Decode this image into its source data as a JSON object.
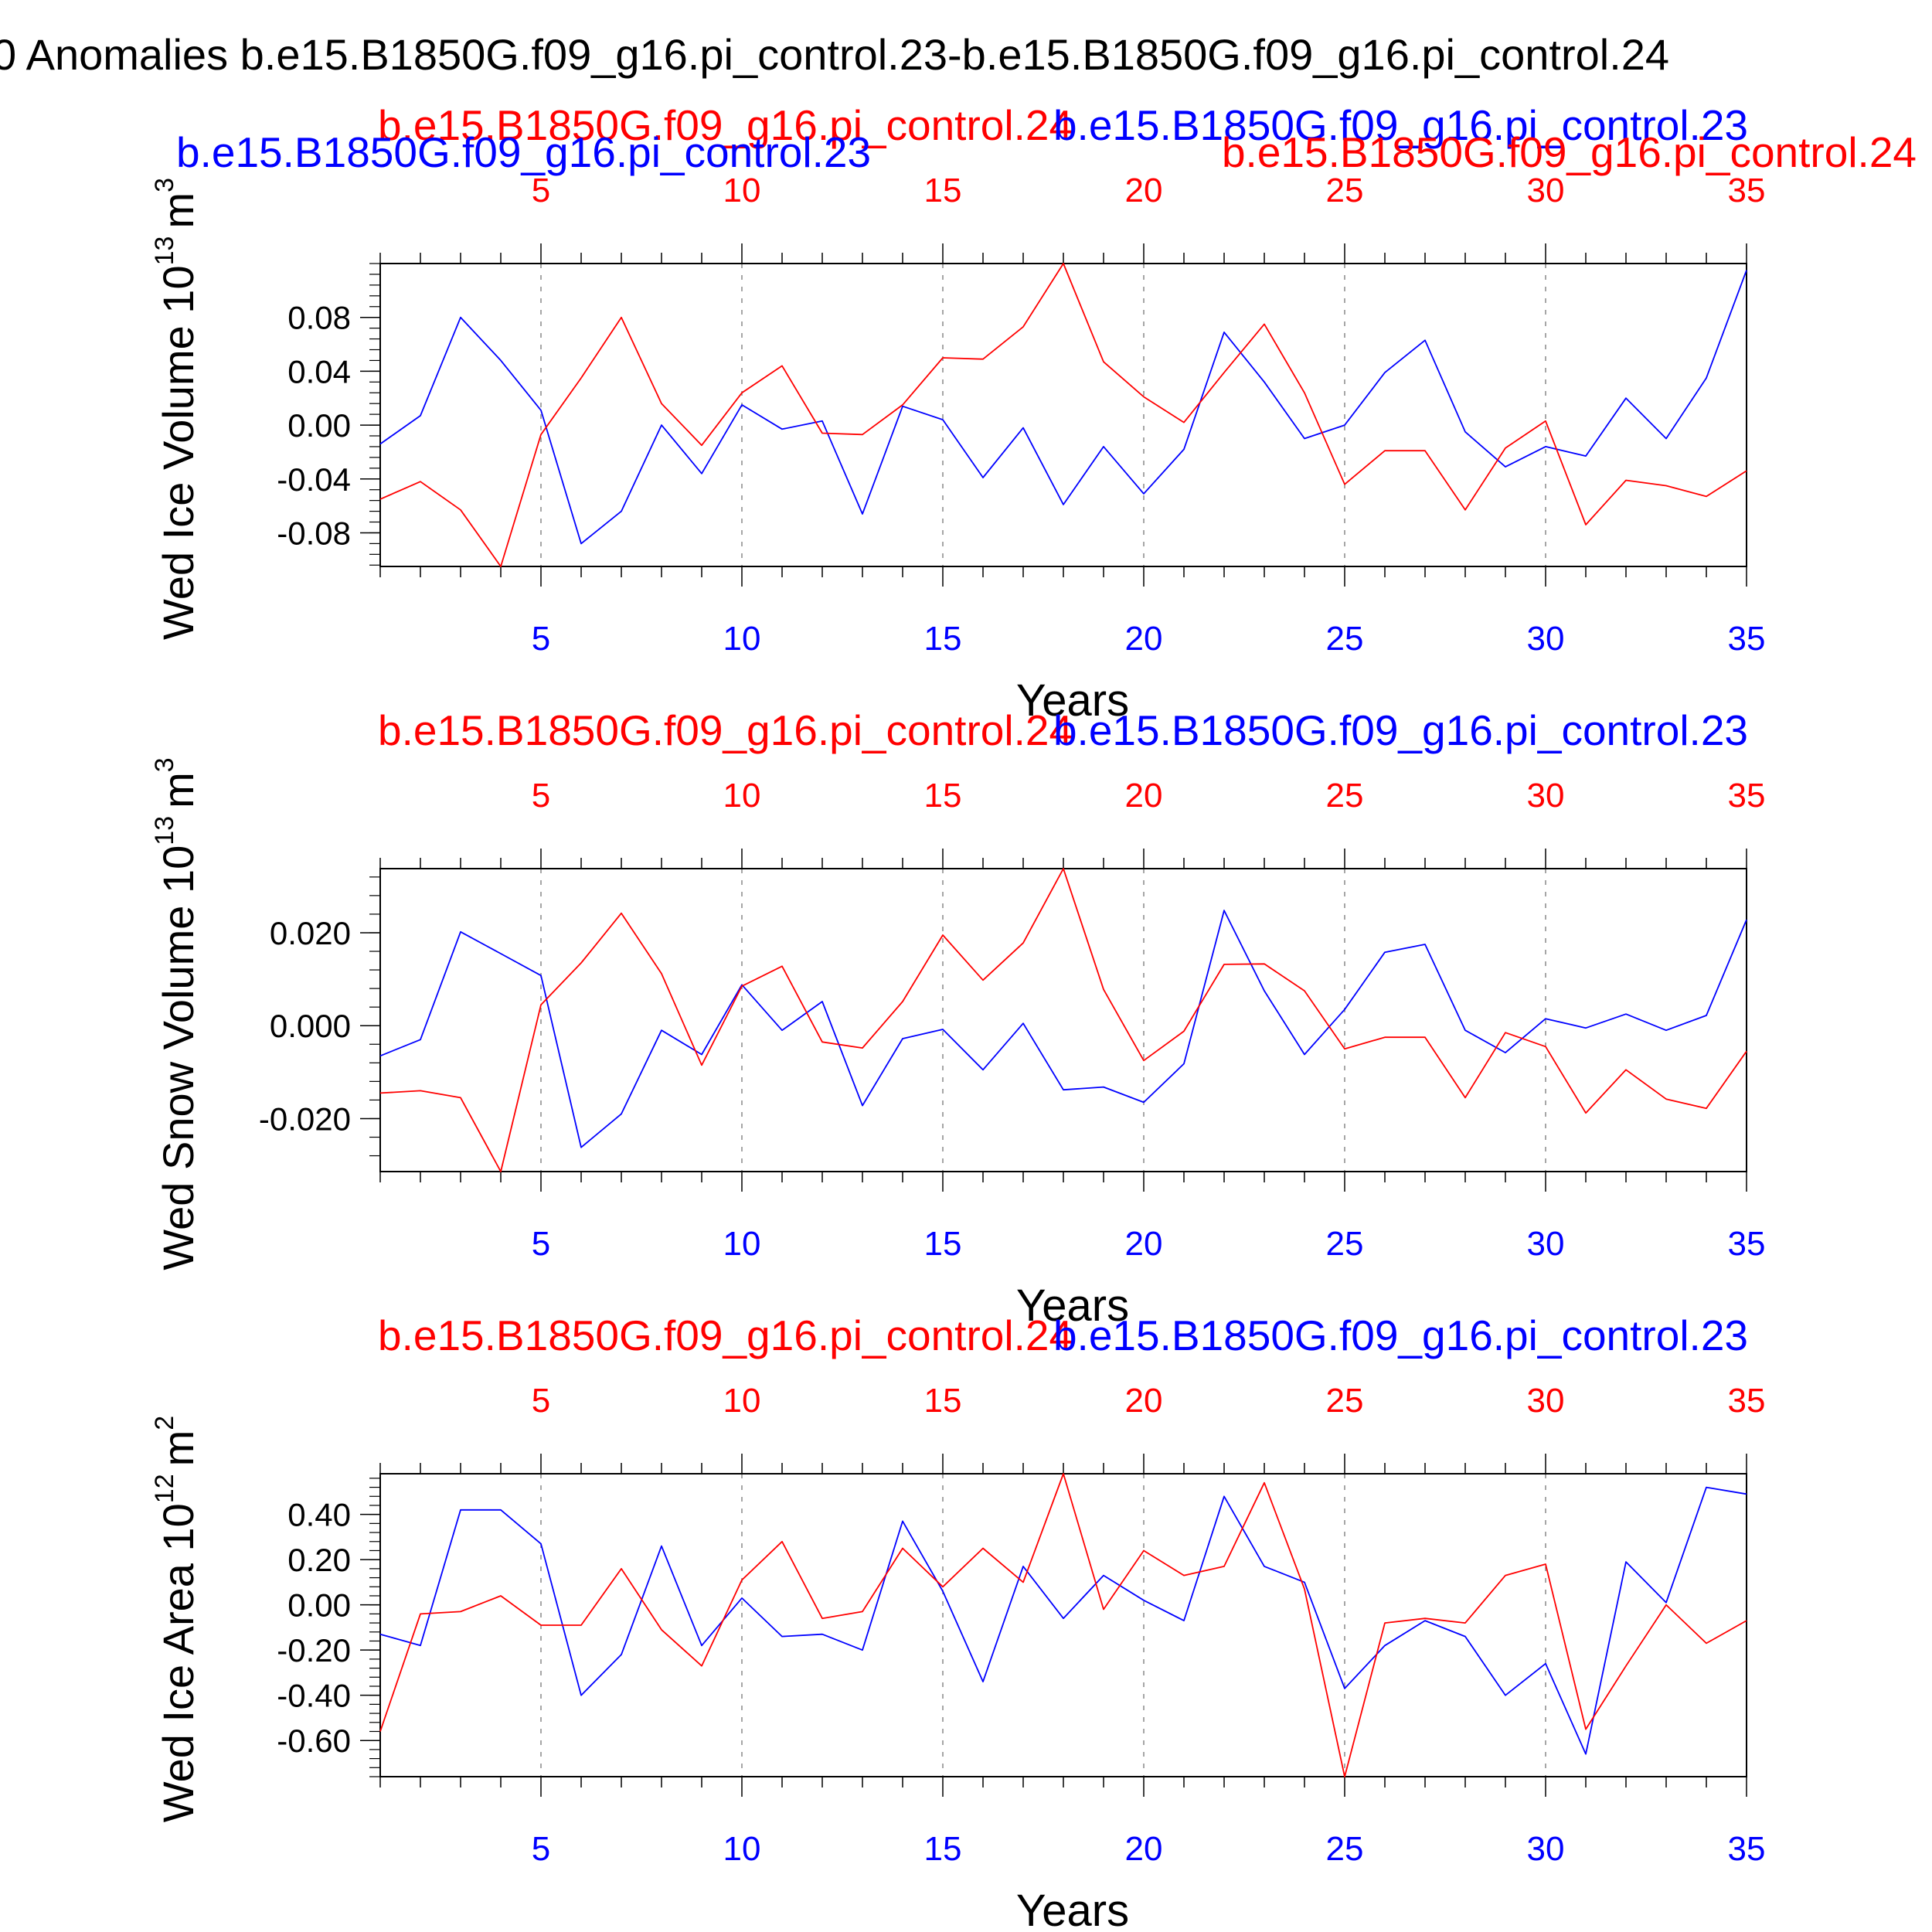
{
  "main_title": "0 Anomalies b.e15.B1850G.f09_g16.pi_control.23-b.e15.B1850G.f09_g16.pi_control.24",
  "colors": {
    "run_a": "#0000ff",
    "run_b": "#ff0000",
    "axis": "#000000",
    "grid": "#888888"
  },
  "chart_data": [
    {
      "type": "line",
      "ylabel": "Wed Ice Volume 10^13 m^3",
      "ylabel_main": "Wed Ice Volume 10",
      "ylabel_exp": "13",
      "ylabel_unit": "m",
      "ylabel_unit_exp": "3",
      "xlabel": "Years",
      "top_title_red": "b.e15.B1850G.f09_g16.pi_control.24",
      "top_title_blue": "b.e15.B1850G.f09_g16.pi_control.23",
      "top_title_blue_overlay": "b.e15.B1850G.f09_g16.pi_control.23",
      "top_title_red_overlay": "b.e15.B1850G.f09_g16.pi_control.24",
      "xlim": [
        1,
        35
      ],
      "ylim": [
        -0.105,
        0.12
      ],
      "xticks": [
        5,
        10,
        15,
        20,
        25,
        30,
        35
      ],
      "yticks": [
        0.08,
        0.04,
        0.0,
        -0.04,
        -0.08
      ],
      "yticklabels": [
        "0.08",
        "0.04",
        "0.00",
        "-0.04",
        "-0.08"
      ],
      "x": [
        1,
        2,
        3,
        4,
        5,
        6,
        7,
        8,
        9,
        10,
        11,
        12,
        13,
        14,
        15,
        16,
        17,
        18,
        19,
        20,
        21,
        22,
        23,
        24,
        25,
        26,
        27,
        28,
        29,
        30,
        31,
        32,
        33,
        34,
        35
      ],
      "series": [
        {
          "name": "b.e15.B1850G.f09_g16.pi_control.23",
          "color": "#0000ff",
          "values": [
            -0.014,
            0.007,
            0.08,
            0.048,
            0.011,
            -0.088,
            -0.064,
            0.0,
            -0.036,
            0.015,
            -0.003,
            0.003,
            -0.066,
            0.014,
            0.004,
            -0.039,
            -0.002,
            -0.059,
            -0.016,
            -0.051,
            -0.018,
            0.069,
            0.032,
            -0.01,
            0.0,
            0.039,
            0.063,
            -0.005,
            -0.031,
            -0.016,
            -0.023,
            0.02,
            -0.01,
            0.035,
            0.115
          ]
        },
        {
          "name": "b.e15.B1850G.f09_g16.pi_control.24",
          "color": "#ff0000",
          "values": [
            -0.055,
            -0.042,
            -0.063,
            -0.105,
            -0.007,
            0.035,
            0.08,
            0.016,
            -0.015,
            0.024,
            0.044,
            -0.006,
            -0.007,
            0.015,
            0.05,
            0.049,
            0.073,
            0.12,
            0.047,
            0.021,
            0.002,
            0.039,
            0.075,
            0.024,
            -0.044,
            -0.019,
            -0.019,
            -0.063,
            -0.017,
            0.003,
            -0.074,
            -0.041,
            -0.045,
            -0.053,
            -0.034
          ]
        }
      ]
    },
    {
      "type": "line",
      "ylabel": "Wed Snow Volume 10^13 m^3",
      "ylabel_main": "Wed Snow Volume 10",
      "ylabel_exp": "13",
      "ylabel_unit": "m",
      "ylabel_unit_exp": "3",
      "xlabel": "Years",
      "top_title_red": "b.e15.B1850G.f09_g16.pi_control.24",
      "top_title_blue": "b.e15.B1850G.f09_g16.pi_control.23",
      "xlim": [
        1,
        35
      ],
      "ylim": [
        -0.0314,
        0.0338
      ],
      "xticks": [
        5,
        10,
        15,
        20,
        25,
        30,
        35
      ],
      "yticks": [
        0.02,
        0.0,
        -0.02
      ],
      "yticklabels": [
        "0.020",
        "0.000",
        "-0.020"
      ],
      "x": [
        1,
        2,
        3,
        4,
        5,
        6,
        7,
        8,
        9,
        10,
        11,
        12,
        13,
        14,
        15,
        16,
        17,
        18,
        19,
        20,
        21,
        22,
        23,
        24,
        25,
        26,
        27,
        28,
        29,
        30,
        31,
        32,
        33,
        34,
        35
      ],
      "series": [
        {
          "name": "b.e15.B1850G.f09_g16.pi_control.23",
          "color": "#0000ff",
          "values": [
            -0.0065,
            -0.003,
            0.0202,
            0.0155,
            0.0108,
            -0.0262,
            -0.019,
            -0.001,
            -0.0062,
            0.0088,
            -0.001,
            0.0052,
            -0.0172,
            -0.0028,
            -0.0008,
            -0.0095,
            0.0005,
            -0.0138,
            -0.0132,
            -0.0165,
            -0.0082,
            0.0248,
            0.0075,
            -0.0062,
            0.0035,
            0.0158,
            0.0175,
            -0.001,
            -0.0058,
            0.0015,
            -0.0005,
            0.0025,
            -0.001,
            0.0022,
            0.0228
          ]
        },
        {
          "name": "b.e15.B1850G.f09_g16.pi_control.24",
          "color": "#ff0000",
          "values": [
            -0.0145,
            -0.014,
            -0.0155,
            -0.0314,
            0.0045,
            0.0135,
            0.0242,
            0.0112,
            -0.0085,
            0.0085,
            0.0128,
            -0.0035,
            -0.0048,
            0.0052,
            0.0195,
            0.0098,
            0.0178,
            0.0338,
            0.0078,
            -0.0075,
            -0.0012,
            0.0132,
            0.0133,
            0.0075,
            -0.005,
            -0.0025,
            -0.0025,
            -0.0155,
            -0.0015,
            -0.0045,
            -0.0188,
            -0.0095,
            -0.0158,
            -0.0178,
            -0.0055
          ]
        }
      ]
    },
    {
      "type": "line",
      "ylabel": "Wed Ice Area 10^12 m^2",
      "ylabel_main": "Wed Ice Area 10",
      "ylabel_exp": "12",
      "ylabel_unit": "m",
      "ylabel_unit_exp": "2",
      "xlabel": "Years",
      "top_title_red": "b.e15.B1850G.f09_g16.pi_control.24",
      "top_title_blue": "b.e15.B1850G.f09_g16.pi_control.23",
      "xlim": [
        1,
        35
      ],
      "ylim": [
        -0.76,
        0.58
      ],
      "xticks": [
        5,
        10,
        15,
        20,
        25,
        30,
        35
      ],
      "yticks": [
        0.4,
        0.2,
        0.0,
        -0.2,
        -0.4,
        -0.6
      ],
      "yticklabels": [
        "0.40",
        "0.20",
        "0.00",
        "-0.20",
        "-0.40",
        "-0.60"
      ],
      "x": [
        1,
        2,
        3,
        4,
        5,
        6,
        7,
        8,
        9,
        10,
        11,
        12,
        13,
        14,
        15,
        16,
        17,
        18,
        19,
        20,
        21,
        22,
        23,
        24,
        25,
        26,
        27,
        28,
        29,
        30,
        31,
        32,
        33,
        34,
        35
      ],
      "series": [
        {
          "name": "b.e15.B1850G.f09_g16.pi_control.23",
          "color": "#0000ff",
          "values": [
            -0.13,
            -0.18,
            0.42,
            0.42,
            0.27,
            -0.4,
            -0.22,
            0.26,
            -0.18,
            0.03,
            -0.14,
            -0.13,
            -0.2,
            0.37,
            0.06,
            -0.34,
            0.17,
            -0.06,
            0.13,
            0.02,
            -0.07,
            0.48,
            0.17,
            0.1,
            -0.37,
            -0.18,
            -0.07,
            -0.14,
            -0.4,
            -0.26,
            -0.66,
            0.19,
            0.01,
            0.52,
            0.49
          ]
        },
        {
          "name": "b.e15.B1850G.f09_g16.pi_control.24",
          "color": "#ff0000",
          "values": [
            -0.56,
            -0.04,
            -0.03,
            0.04,
            -0.09,
            -0.09,
            0.16,
            -0.11,
            -0.27,
            0.11,
            0.28,
            -0.06,
            -0.03,
            0.25,
            0.08,
            0.25,
            0.1,
            0.58,
            -0.02,
            0.24,
            0.13,
            0.17,
            0.54,
            0.07,
            -0.76,
            -0.08,
            -0.06,
            -0.08,
            0.13,
            0.18,
            -0.55,
            -0.27,
            0.0,
            -0.17,
            -0.07
          ]
        }
      ]
    }
  ]
}
